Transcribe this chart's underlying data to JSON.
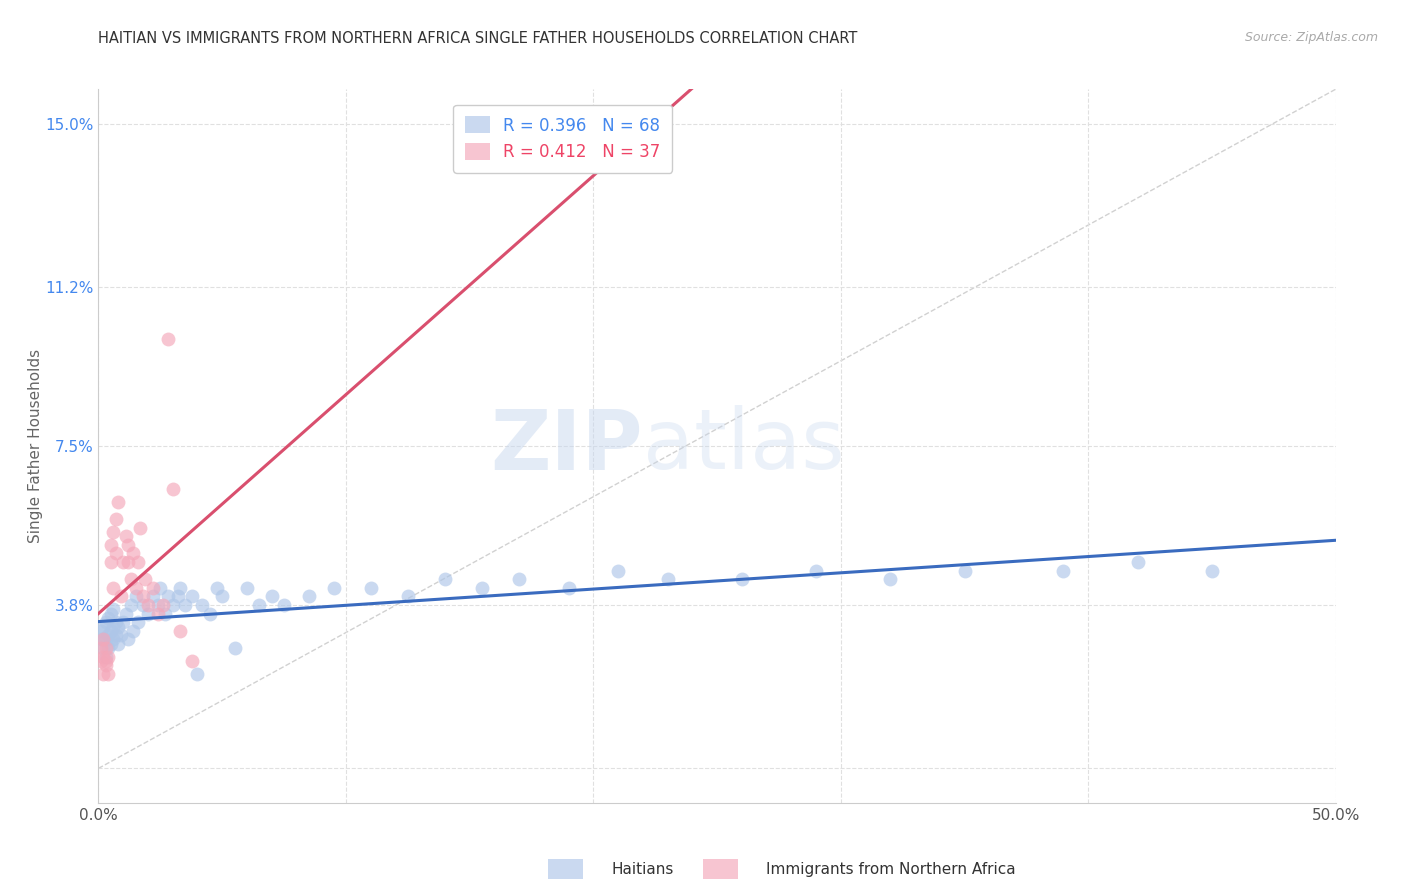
{
  "title": "HAITIAN VS IMMIGRANTS FROM NORTHERN AFRICA SINGLE FATHER HOUSEHOLDS CORRELATION CHART",
  "source": "Source: ZipAtlas.com",
  "ylabel": "Single Father Households",
  "x_min": 0.0,
  "x_max": 0.5,
  "y_min": -0.008,
  "y_max": 0.158,
  "x_ticks": [
    0.0,
    0.1,
    0.2,
    0.3,
    0.4,
    0.5
  ],
  "x_tick_labels": [
    "0.0%",
    "",
    "",
    "",
    "",
    "50.0%"
  ],
  "y_ticks": [
    0.0,
    0.038,
    0.075,
    0.112,
    0.15
  ],
  "y_tick_labels": [
    "",
    "3.8%",
    "7.5%",
    "11.2%",
    "15.0%"
  ],
  "watermark_zip": "ZIP",
  "watermark_atlas": "atlas",
  "haitians_color": "#aec6e8",
  "northern_africa_color": "#f4a7b9",
  "haitians_line_color": "#3a6bbf",
  "northern_africa_line_color": "#d94f6e",
  "diagonal_color": "#cccccc",
  "background_color": "#ffffff",
  "grid_color": "#e0e0e0",
  "haitian_R": 0.396,
  "northern_africa_R": 0.412,
  "haitian_N": 68,
  "northern_africa_N": 37,
  "haitians_x": [
    0.001,
    0.001,
    0.002,
    0.002,
    0.002,
    0.003,
    0.003,
    0.003,
    0.004,
    0.004,
    0.004,
    0.005,
    0.005,
    0.005,
    0.006,
    0.006,
    0.006,
    0.007,
    0.007,
    0.008,
    0.008,
    0.009,
    0.01,
    0.011,
    0.012,
    0.013,
    0.014,
    0.015,
    0.016,
    0.018,
    0.02,
    0.022,
    0.024,
    0.025,
    0.027,
    0.028,
    0.03,
    0.032,
    0.033,
    0.035,
    0.038,
    0.04,
    0.042,
    0.045,
    0.048,
    0.05,
    0.055,
    0.06,
    0.065,
    0.07,
    0.075,
    0.085,
    0.095,
    0.11,
    0.125,
    0.14,
    0.155,
    0.17,
    0.19,
    0.21,
    0.23,
    0.26,
    0.29,
    0.32,
    0.35,
    0.39,
    0.42,
    0.45
  ],
  "haitians_y": [
    0.03,
    0.032,
    0.028,
    0.03,
    0.033,
    0.026,
    0.03,
    0.034,
    0.028,
    0.031,
    0.035,
    0.029,
    0.032,
    0.036,
    0.03,
    0.033,
    0.037,
    0.031,
    0.034,
    0.029,
    0.033,
    0.031,
    0.034,
    0.036,
    0.03,
    0.038,
    0.032,
    0.04,
    0.034,
    0.038,
    0.036,
    0.04,
    0.038,
    0.042,
    0.036,
    0.04,
    0.038,
    0.04,
    0.042,
    0.038,
    0.04,
    0.022,
    0.038,
    0.036,
    0.042,
    0.04,
    0.028,
    0.042,
    0.038,
    0.04,
    0.038,
    0.04,
    0.042,
    0.042,
    0.04,
    0.044,
    0.042,
    0.044,
    0.042,
    0.046,
    0.044,
    0.044,
    0.046,
    0.044,
    0.046,
    0.046,
    0.048,
    0.046
  ],
  "northern_africa_x": [
    0.001,
    0.001,
    0.002,
    0.002,
    0.002,
    0.003,
    0.003,
    0.003,
    0.004,
    0.004,
    0.005,
    0.005,
    0.006,
    0.006,
    0.007,
    0.007,
    0.008,
    0.009,
    0.01,
    0.011,
    0.012,
    0.012,
    0.013,
    0.014,
    0.015,
    0.016,
    0.017,
    0.018,
    0.019,
    0.02,
    0.022,
    0.024,
    0.026,
    0.028,
    0.03,
    0.033,
    0.038
  ],
  "northern_africa_y": [
    0.025,
    0.028,
    0.022,
    0.026,
    0.03,
    0.024,
    0.028,
    0.025,
    0.022,
    0.026,
    0.048,
    0.052,
    0.055,
    0.042,
    0.058,
    0.05,
    0.062,
    0.04,
    0.048,
    0.054,
    0.048,
    0.052,
    0.044,
    0.05,
    0.042,
    0.048,
    0.056,
    0.04,
    0.044,
    0.038,
    0.042,
    0.036,
    0.038,
    0.1,
    0.065,
    0.032,
    0.025
  ]
}
